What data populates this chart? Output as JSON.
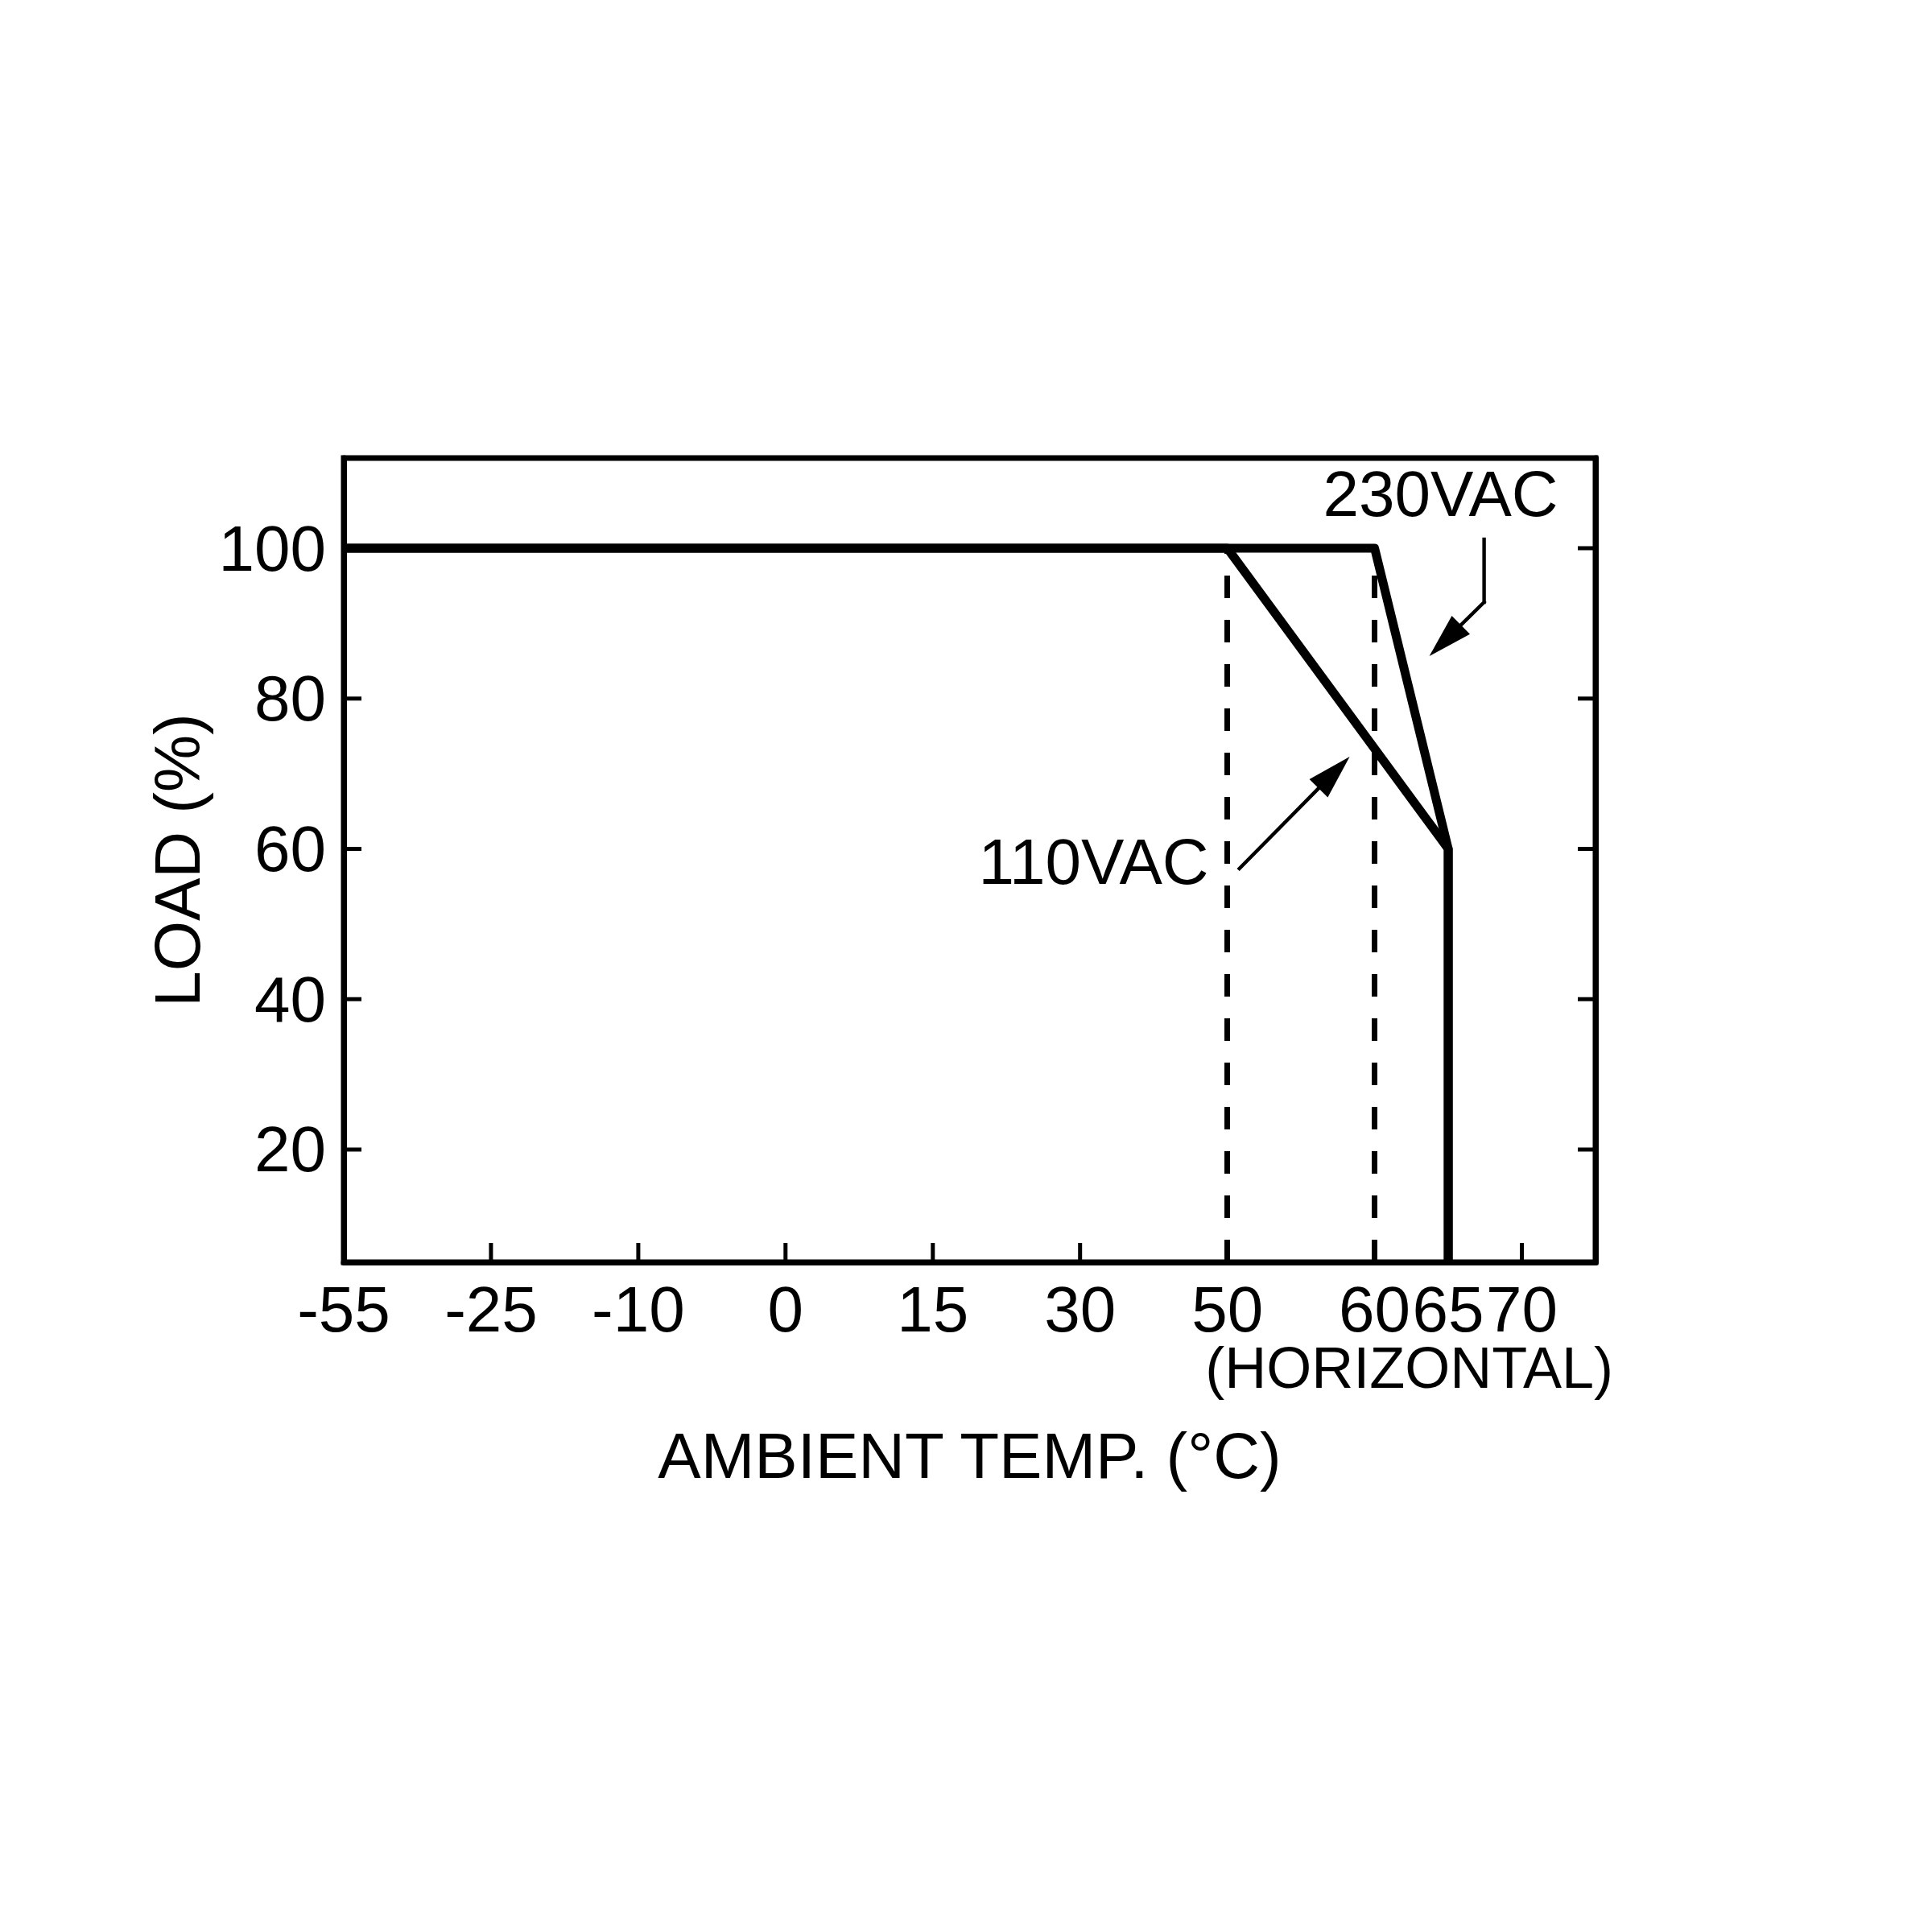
{
  "chart_data": {
    "type": "line",
    "xlabel": "AMBIENT TEMP. (°C)",
    "ylabel": "LOAD (%)",
    "categories": [
      "-55",
      null,
      "-25",
      null,
      "-10",
      null,
      "0",
      null,
      "15",
      null,
      "30",
      null,
      "50",
      null,
      "60",
      "65",
      "70",
      null
    ],
    "ylim": [
      5,
      112
    ],
    "yticks": [
      20,
      40,
      60,
      80,
      100
    ],
    "marker": "none",
    "line_style": "solid",
    "series": [
      {
        "name": "230VAC",
        "x": [
          "-55",
          "60",
          "65",
          "65"
        ],
        "values": [
          100,
          100,
          60,
          5
        ],
        "color": "#000000"
      },
      {
        "name": "110VAC",
        "x": [
          "-55",
          "50",
          "65",
          "65"
        ],
        "values": [
          100,
          100,
          60,
          5
        ],
        "color": "#000000"
      }
    ],
    "ref_lines": [
      {
        "axis": "x",
        "value": "50",
        "color": "#000000",
        "line_style": "dashed"
      },
      {
        "axis": "x",
        "value": "60",
        "color": "#000000",
        "line_style": "dashed"
      }
    ],
    "annotations": [
      "(HORIZONTAL)"
    ]
  }
}
